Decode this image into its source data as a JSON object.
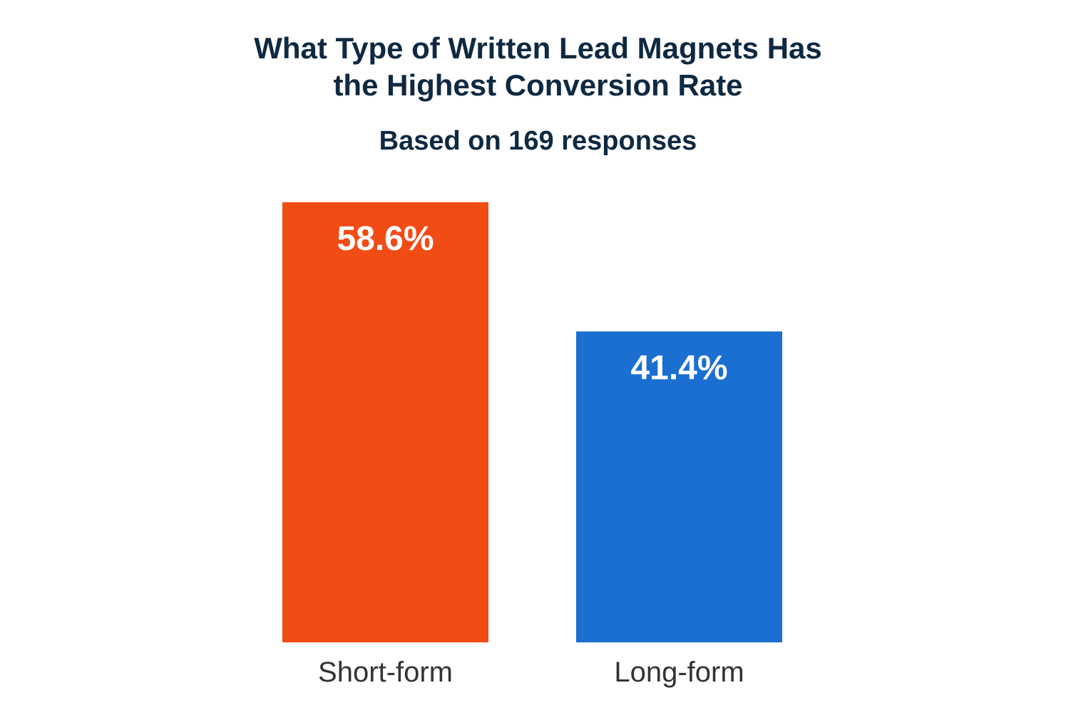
{
  "title_lines": [
    "What Type of Written Lead Magnets Has",
    "the Highest Conversion Rate"
  ],
  "subtitle": "Based on 169 responses",
  "chart_data": {
    "type": "bar",
    "categories": [
      "Short-form",
      "Long-form"
    ],
    "values": [
      58.6,
      41.4
    ],
    "value_labels": [
      "58.6%",
      "41.4%"
    ],
    "colors": [
      "#f24c15",
      "#1a6fd1"
    ],
    "ylim": [
      0,
      58.6
    ],
    "grid": false,
    "legend": "none"
  },
  "colors": {
    "title": "#0f2942",
    "category_label": "#333333",
    "value_label": "#ffffff"
  }
}
